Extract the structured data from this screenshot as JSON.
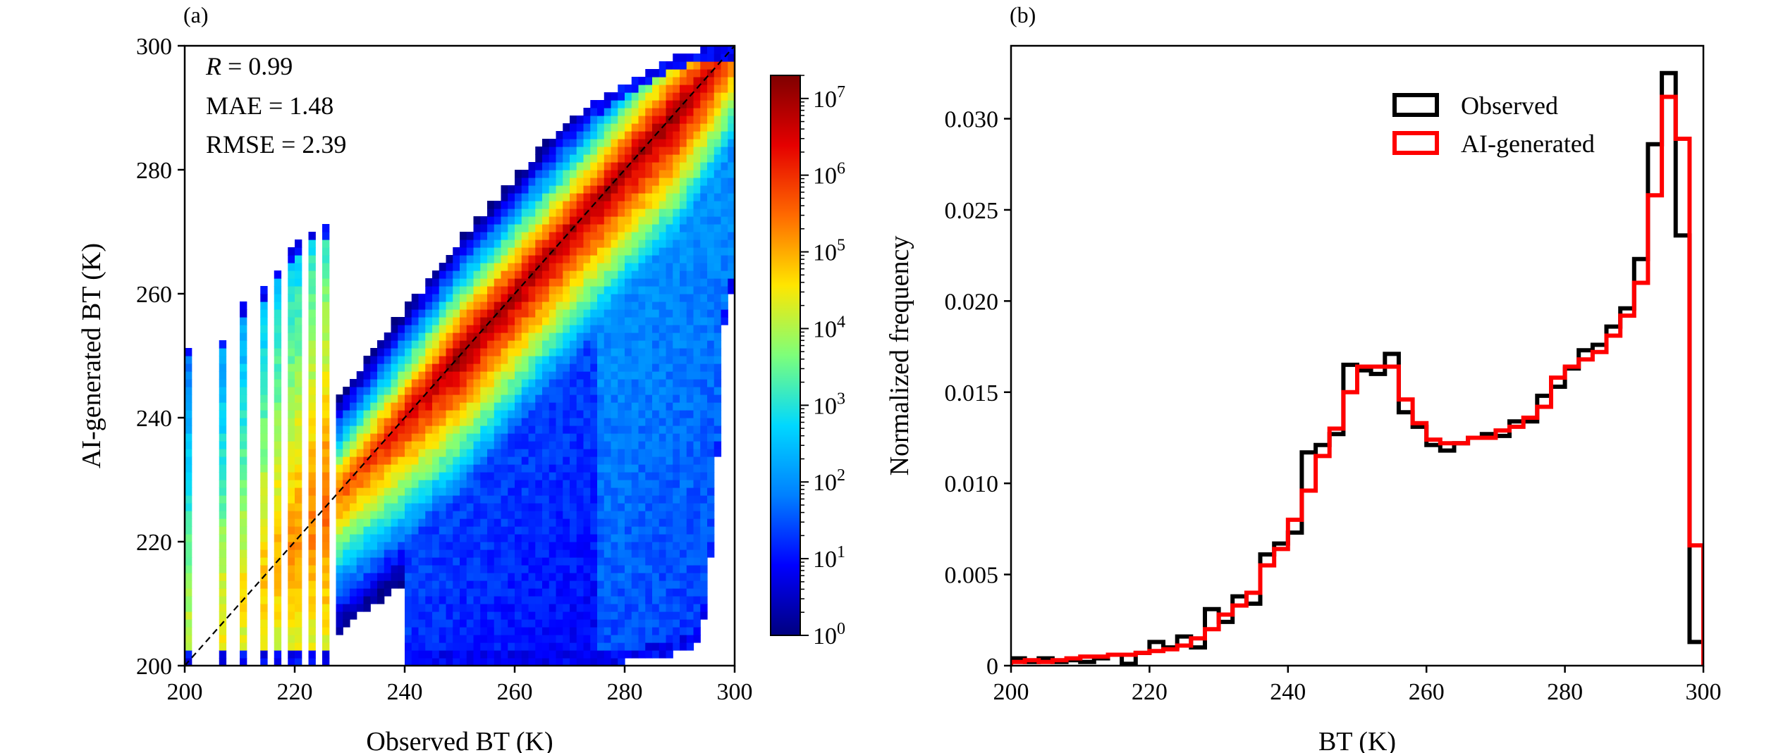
{
  "chart_data": [
    {
      "panel_label": "(a)",
      "type": "heatmap",
      "xlabel": "Observed BT (K)",
      "ylabel": "AI-generated BT (K)",
      "xlim": [
        200,
        300
      ],
      "ylim": [
        200,
        300
      ],
      "xticks": [
        200,
        220,
        240,
        260,
        280,
        300
      ],
      "yticks": [
        200,
        220,
        240,
        260,
        280,
        300
      ],
      "annotations": [
        {
          "var": "R",
          "text": " = 0.99"
        },
        {
          "var": "",
          "text": "MAE = 1.48"
        },
        {
          "var": "",
          "text": "RMSE = 2.39"
        }
      ],
      "reference_line": {
        "style": "dashed",
        "color": "#000000",
        "from": [
          200,
          200
        ],
        "to": [
          300,
          300
        ]
      },
      "colorbar": {
        "scale": "log",
        "min": 1,
        "max": 20000000,
        "tick_values": [
          1,
          10,
          100,
          1000,
          10000,
          100000,
          1000000,
          10000000
        ],
        "tick_labels": [
          {
            "base": "10",
            "exp": "0"
          },
          {
            "base": "10",
            "exp": "1"
          },
          {
            "base": "10",
            "exp": "2"
          },
          {
            "base": "10",
            "exp": "3"
          },
          {
            "base": "10",
            "exp": "4"
          },
          {
            "base": "10",
            "exp": "5"
          },
          {
            "base": "10",
            "exp": "6"
          },
          {
            "base": "10",
            "exp": "7"
          }
        ],
        "colormap": [
          "#00007f",
          "#0000ff",
          "#0080ff",
          "#00d8ff",
          "#7dff7a",
          "#ffe600",
          "#ff6a00",
          "#e50000",
          "#7f0000"
        ]
      },
      "density_model": {
        "peaks": [
          {
            "x": 251,
            "y": 251,
            "log_count": 7.2
          },
          {
            "x": 294,
            "y": 294,
            "log_count": 7.3
          }
        ],
        "diagonal_log_count": [
          [
            200,
            4.4
          ],
          [
            210,
            4.6
          ],
          [
            220,
            5.2
          ],
          [
            230,
            5.8
          ],
          [
            240,
            6.5
          ],
          [
            250,
            7.1
          ],
          [
            260,
            7.0
          ],
          [
            270,
            6.9
          ],
          [
            280,
            7.0
          ],
          [
            290,
            7.2
          ],
          [
            300,
            6.0
          ]
        ],
        "spread_log_decay_per_K": 0.42,
        "upper_limit_y": [
          [
            200,
            252
          ],
          [
            205,
            250
          ],
          [
            210,
            258
          ],
          [
            215,
            262
          ],
          [
            220,
            268
          ],
          [
            225,
            272
          ],
          [
            230,
            266
          ],
          [
            240,
            266
          ],
          [
            250,
            270
          ],
          [
            260,
            280
          ],
          [
            270,
            288
          ],
          [
            280,
            294
          ],
          [
            290,
            299
          ],
          [
            300,
            300
          ]
        ],
        "lower_limit_y": [
          [
            228,
            200
          ],
          [
            270,
            200
          ],
          [
            285,
            201
          ],
          [
            293,
            203
          ],
          [
            295,
            210
          ],
          [
            297,
            235
          ],
          [
            298,
            255
          ],
          [
            300,
            262
          ]
        ],
        "discrete_columns_x": [
          201,
          207,
          211,
          214,
          217,
          220,
          223,
          226
        ]
      }
    },
    {
      "panel_label": "(b)",
      "type": "line",
      "step": true,
      "xlabel": "BT (K)",
      "ylabel": "Normalized frequency",
      "xlim": [
        200,
        300
      ],
      "ylim": [
        0,
        0.034
      ],
      "xticks": [
        200,
        220,
        240,
        260,
        280,
        300
      ],
      "yticks": [
        0,
        0.005,
        0.01,
        0.015,
        0.02,
        0.025,
        0.03
      ],
      "ytick_labels": [
        "0",
        "0.005",
        "0.010",
        "0.015",
        "0.020",
        "0.025",
        "0.030"
      ],
      "legend_position": "top-right",
      "bin_edges": [
        200,
        202,
        204,
        206,
        208,
        210,
        212,
        214,
        216,
        218,
        220,
        222,
        224,
        226,
        228,
        230,
        232,
        234,
        236,
        238,
        240,
        242,
        244,
        246,
        248,
        250,
        252,
        254,
        256,
        258,
        260,
        262,
        264,
        266,
        268,
        270,
        272,
        274,
        276,
        278,
        280,
        282,
        284,
        286,
        288,
        290,
        292,
        294,
        296,
        298,
        300
      ],
      "series": [
        {
          "name": "Observed",
          "color": "#000000",
          "values": [
            0.0004,
            0.0002,
            0.0004,
            0.0002,
            0.0003,
            0.0002,
            0.0004,
            0.0006,
            0.0001,
            0.0007,
            0.0013,
            0.001,
            0.0016,
            0.001,
            0.0031,
            0.0024,
            0.0038,
            0.0034,
            0.0061,
            0.0067,
            0.0073,
            0.0117,
            0.0121,
            0.0127,
            0.0165,
            0.0162,
            0.016,
            0.0171,
            0.0139,
            0.0131,
            0.0121,
            0.0118,
            0.0122,
            0.0125,
            0.0127,
            0.0126,
            0.0134,
            0.0134,
            0.0148,
            0.0153,
            0.0163,
            0.0173,
            0.0176,
            0.0186,
            0.0196,
            0.0223,
            0.0286,
            0.0325,
            0.0236,
            0.0013
          ]
        },
        {
          "name": "AI-generated",
          "color": "#ff0000",
          "values": [
            0.0002,
            0.0003,
            0.0002,
            0.0003,
            0.0004,
            0.0005,
            0.0005,
            0.0006,
            0.0006,
            0.0007,
            0.0008,
            0.0009,
            0.0011,
            0.0015,
            0.002,
            0.0028,
            0.0033,
            0.004,
            0.0055,
            0.0064,
            0.008,
            0.0096,
            0.0115,
            0.013,
            0.015,
            0.0164,
            0.0164,
            0.0164,
            0.0146,
            0.0133,
            0.0124,
            0.0122,
            0.0122,
            0.0125,
            0.0125,
            0.0129,
            0.0131,
            0.0136,
            0.0142,
            0.0158,
            0.0164,
            0.0168,
            0.0172,
            0.0181,
            0.0192,
            0.021,
            0.0258,
            0.0312,
            0.0289,
            0.0066
          ]
        }
      ]
    }
  ]
}
